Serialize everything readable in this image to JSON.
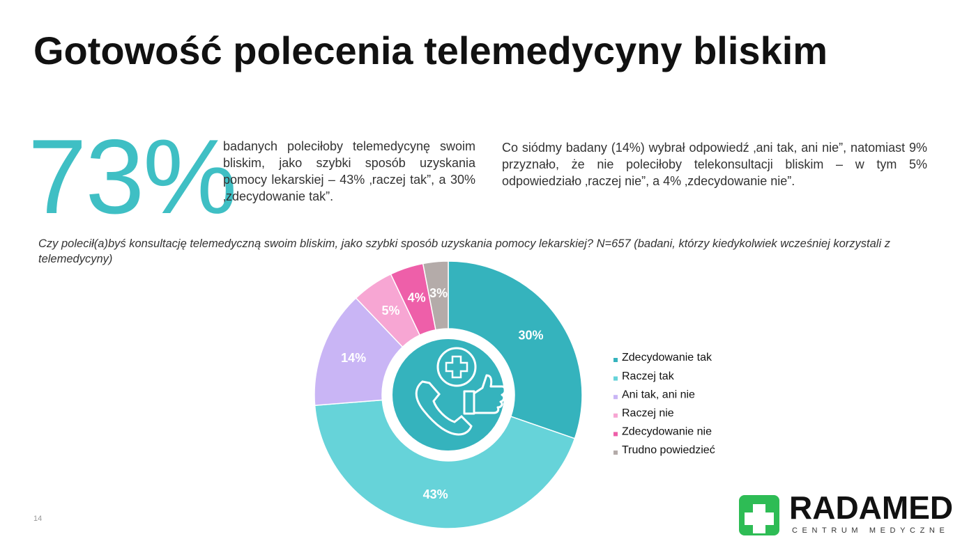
{
  "slide": {
    "title": "Gotowość polecenia telemedycyny bliskim",
    "headline_value": "73%",
    "headline_text": "badanych poleciłoby telemedycynę swoim bliskim, jako szybki sposób uzyskania pomocy lekarskiej – 43% ‚raczej tak”, a 30% ‚zdecydowanie tak”.",
    "side_text": "Co siódmy badany (14%) wybrał odpowiedź ‚ani tak, ani nie”, natomiast 9% przyznało, że nie poleciłoby telekonsultacji bliskim – w tym 5% odpowiedziało ‚raczej nie”, a 4% ‚zdecydowanie nie”.",
    "question": "Czy polecił(a)byś konsultację telemedyczną swoim bliskim, jako szybki sposób uzyskania pomocy lekarskiej? N=657 (badani, którzy kiedykolwiek wcześniej korzystali z telemedycyny)",
    "page_number": "14",
    "logo_name": "RADAMED",
    "logo_subtitle": "CENTRUM MEDYCZNE"
  },
  "chart_data": {
    "type": "donut",
    "categories": [
      "Zdecydowanie tak",
      "Raczej tak",
      "Ani tak, ani nie",
      "Raczej nie",
      "Zdecydowanie nie",
      "Trudno powiedzieć"
    ],
    "values": [
      30,
      43,
      14,
      5,
      4,
      3
    ],
    "value_labels": [
      "30%",
      "43%",
      "14%",
      "5%",
      "4%",
      "3%"
    ],
    "colors": [
      "#35b3bd",
      "#66d3d9",
      "#c9b5f5",
      "#f7a6d3",
      "#ee5fa9",
      "#b4aba9"
    ],
    "legend": "right"
  }
}
